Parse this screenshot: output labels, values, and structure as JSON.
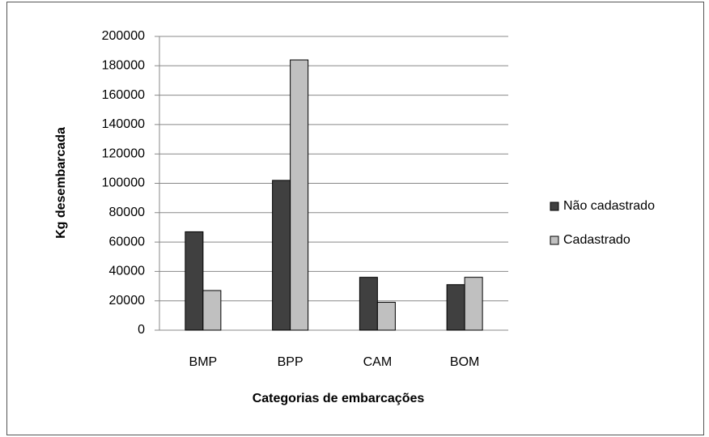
{
  "chart_data": {
    "type": "bar",
    "y_label": "Kg desembarcada",
    "x_label": "Categorias de embarcações",
    "categories": [
      "BMP",
      "BPP",
      "CAM",
      "BOM"
    ],
    "series": [
      {
        "name": "Não cadastrado",
        "color": "#404040",
        "values": [
          67000,
          102000,
          36000,
          31000
        ]
      },
      {
        "name": "Cadastrado",
        "color": "#c0c0c0",
        "values": [
          27000,
          184000,
          19000,
          36000
        ]
      }
    ],
    "ylim": [
      0,
      200000
    ],
    "yticks": [
      0,
      20000,
      40000,
      60000,
      80000,
      100000,
      120000,
      140000,
      160000,
      180000,
      200000
    ],
    "grid": true,
    "legend": "right"
  }
}
